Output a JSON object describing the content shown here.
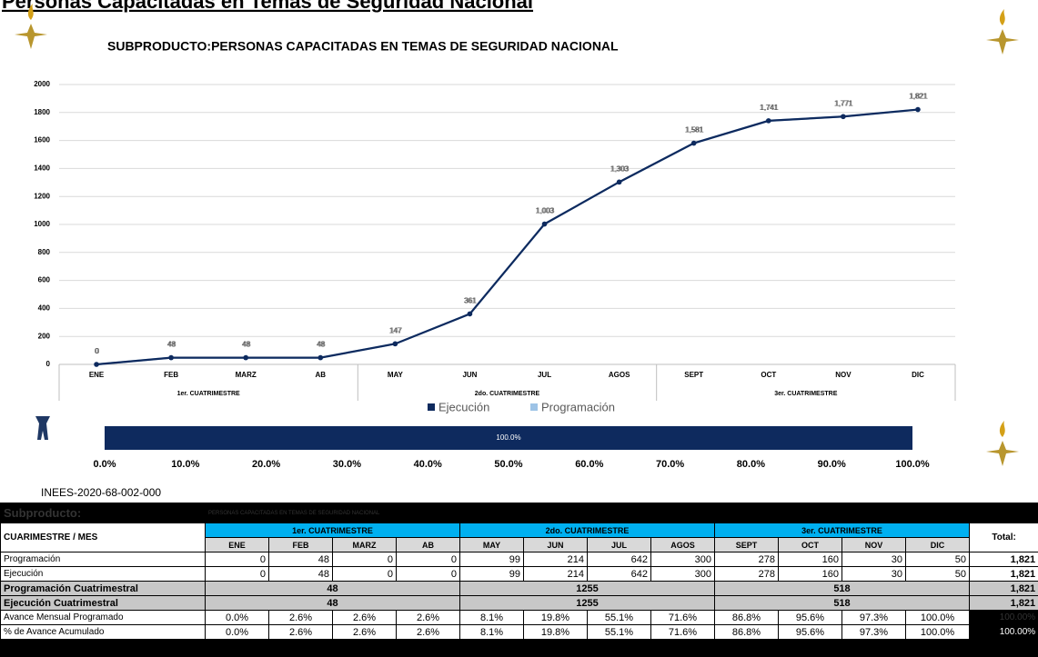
{
  "header": {
    "title": "Personas Capacitadas en Temas de Seguridad Nacional"
  },
  "chart_data": {
    "type": "line",
    "title": "SUBPRODUCTO:PERSONAS CAPACITADAS EN TEMAS DE SEGURIDAD NACIONAL",
    "categories": [
      "ENE",
      "FEB",
      "MARZ",
      "AB",
      "MAY",
      "JUN",
      "JUL",
      "AGOS",
      "SEPT",
      "OCT",
      "NOV",
      "DIC"
    ],
    "groups": [
      "1er. CUATRIMESTRE",
      "2do. CUATRIMESTRE",
      "3er. CUATRIMESTRE"
    ],
    "series": [
      {
        "name": "Programación",
        "color": "#9dc3e6",
        "values": [
          0,
          48,
          48,
          48,
          147,
          361,
          1003,
          1303,
          1581,
          1741,
          1771,
          1821
        ],
        "value_labels": [
          "0",
          "48",
          "48",
          "48",
          "147",
          "361",
          "1,003",
          "1,303",
          "1,581",
          "1,741",
          "1,771",
          "1,821"
        ]
      },
      {
        "name": "Ejecución",
        "color": "#0e2a5e",
        "values": [
          0,
          48,
          48,
          48,
          147,
          361,
          1003,
          1303,
          1581,
          1741,
          1771,
          1821
        ],
        "value_labels": [
          "0",
          "48",
          "48",
          "48",
          "147",
          "361",
          "1,003",
          "1,303",
          "1,581",
          "1,741",
          "1,771",
          "1,821"
        ]
      }
    ],
    "ylim": [
      0,
      2000
    ],
    "yticks": [
      0,
      200,
      400,
      600,
      800,
      1000,
      1200,
      1400,
      1600,
      1800,
      2000
    ],
    "grid": true,
    "legend": "bottom"
  },
  "progress": {
    "value": 100,
    "value_label": "100.0%",
    "color": "#0e2a5e",
    "xlim": [
      0,
      100
    ],
    "xticks": [
      {
        "value": 0,
        "label": "0.0%"
      },
      {
        "value": 10,
        "label": "10.0%"
      },
      {
        "value": 20,
        "label": "20.0%"
      },
      {
        "value": 30,
        "label": "30.0%"
      },
      {
        "value": 40,
        "label": "40.0%"
      },
      {
        "value": 50,
        "label": "50.0%"
      },
      {
        "value": 60,
        "label": "60.0%"
      },
      {
        "value": 70,
        "label": "70.0%"
      },
      {
        "value": 80,
        "label": "80.0%"
      },
      {
        "value": 90,
        "label": "90.0%"
      },
      {
        "value": 100,
        "label": "100.0%"
      }
    ]
  },
  "code": "INEES-2020-68-002-000",
  "table": {
    "title": "Subproducto:",
    "subtitle": "PERSONAS CAPACITADAS EN TEMAS DE SEGURIDAD NACIONAL",
    "corner": "CUARIMESTRE / MES",
    "groups": [
      "1er. CUATRIMESTRE",
      "2do. CUATRIMESTRE",
      "3er. CUATRIMESTRE"
    ],
    "months": [
      "ENE",
      "FEB",
      "MARZ",
      "AB",
      "MAY",
      "JUN",
      "JUL",
      "AGOS",
      "SEPT",
      "OCT",
      "NOV",
      "DIC"
    ],
    "total_header": "Total:",
    "rows": [
      {
        "label": "Programación",
        "cells": [
          "0",
          "48",
          "0",
          "0",
          "99",
          "214",
          "642",
          "300",
          "278",
          "160",
          "30",
          "50"
        ],
        "total": "1,821"
      },
      {
        "label": "Ejecución",
        "cells": [
          "0",
          "48",
          "0",
          "0",
          "99",
          "214",
          "642",
          "300",
          "278",
          "160",
          "30",
          "50"
        ],
        "total": "1,821"
      },
      {
        "label": "Programación Cuatrimestral",
        "cells": [
          "48",
          "1255",
          "518"
        ],
        "total": "1,821"
      },
      {
        "label": "Ejecución Cuatrimestral",
        "cells": [
          "48",
          "1255",
          "518"
        ],
        "total": "1,821"
      },
      {
        "label": "Avance Mensual Programado",
        "cells": [
          "0.0%",
          "2.6%",
          "2.6%",
          "2.6%",
          "8.1%",
          "19.8%",
          "55.1%",
          "71.6%",
          "86.8%",
          "95.6%",
          "97.3%",
          "100.0%"
        ],
        "total": "100.00%"
      },
      {
        "label": "% de Avance Acumulado",
        "cells": [
          "0.0%",
          "2.6%",
          "2.6%",
          "2.6%",
          "8.1%",
          "19.8%",
          "55.1%",
          "71.6%",
          "86.8%",
          "95.6%",
          "97.3%",
          "100.0%"
        ],
        "total": "100.00%"
      }
    ]
  }
}
